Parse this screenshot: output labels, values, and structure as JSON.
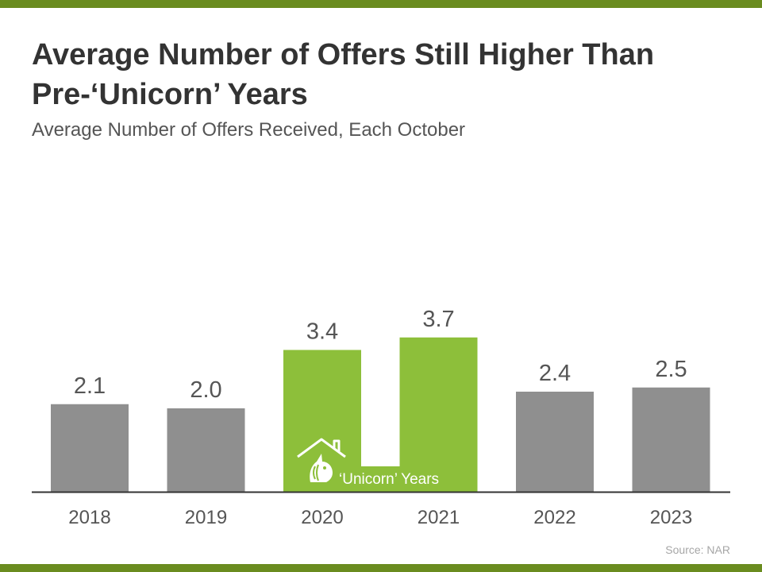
{
  "title": "Average Number of Offers Still Higher Than Pre-‘Unicorn’ Years",
  "subtitle": "Average Number of Offers Received, Each October",
  "source": "Source: NAR",
  "colors": {
    "band": "#6a8c1f",
    "bar_default": "#8f8f8f",
    "bar_highlight": "#8dbf3a",
    "text": "#555555",
    "axis": "#333333"
  },
  "chart_data": {
    "type": "bar",
    "title": "Average Number of Offers Still Higher Than Pre-‘Unicorn’ Years",
    "subtitle": "Average Number of Offers Received, Each October",
    "categories": [
      "2018",
      "2019",
      "2020",
      "2021",
      "2022",
      "2023"
    ],
    "values": [
      2.1,
      2.0,
      3.4,
      3.7,
      2.4,
      2.5
    ],
    "value_labels": [
      "2.1",
      "2.0",
      "3.4",
      "3.7",
      "2.4",
      "2.5"
    ],
    "highlighted": [
      "2020",
      "2021"
    ],
    "highlight_label": "‘Unicorn’ Years",
    "highlight_icon": "house-unicorn-icon",
    "ylim": [
      0,
      4
    ],
    "grid": false,
    "legend": "none"
  }
}
